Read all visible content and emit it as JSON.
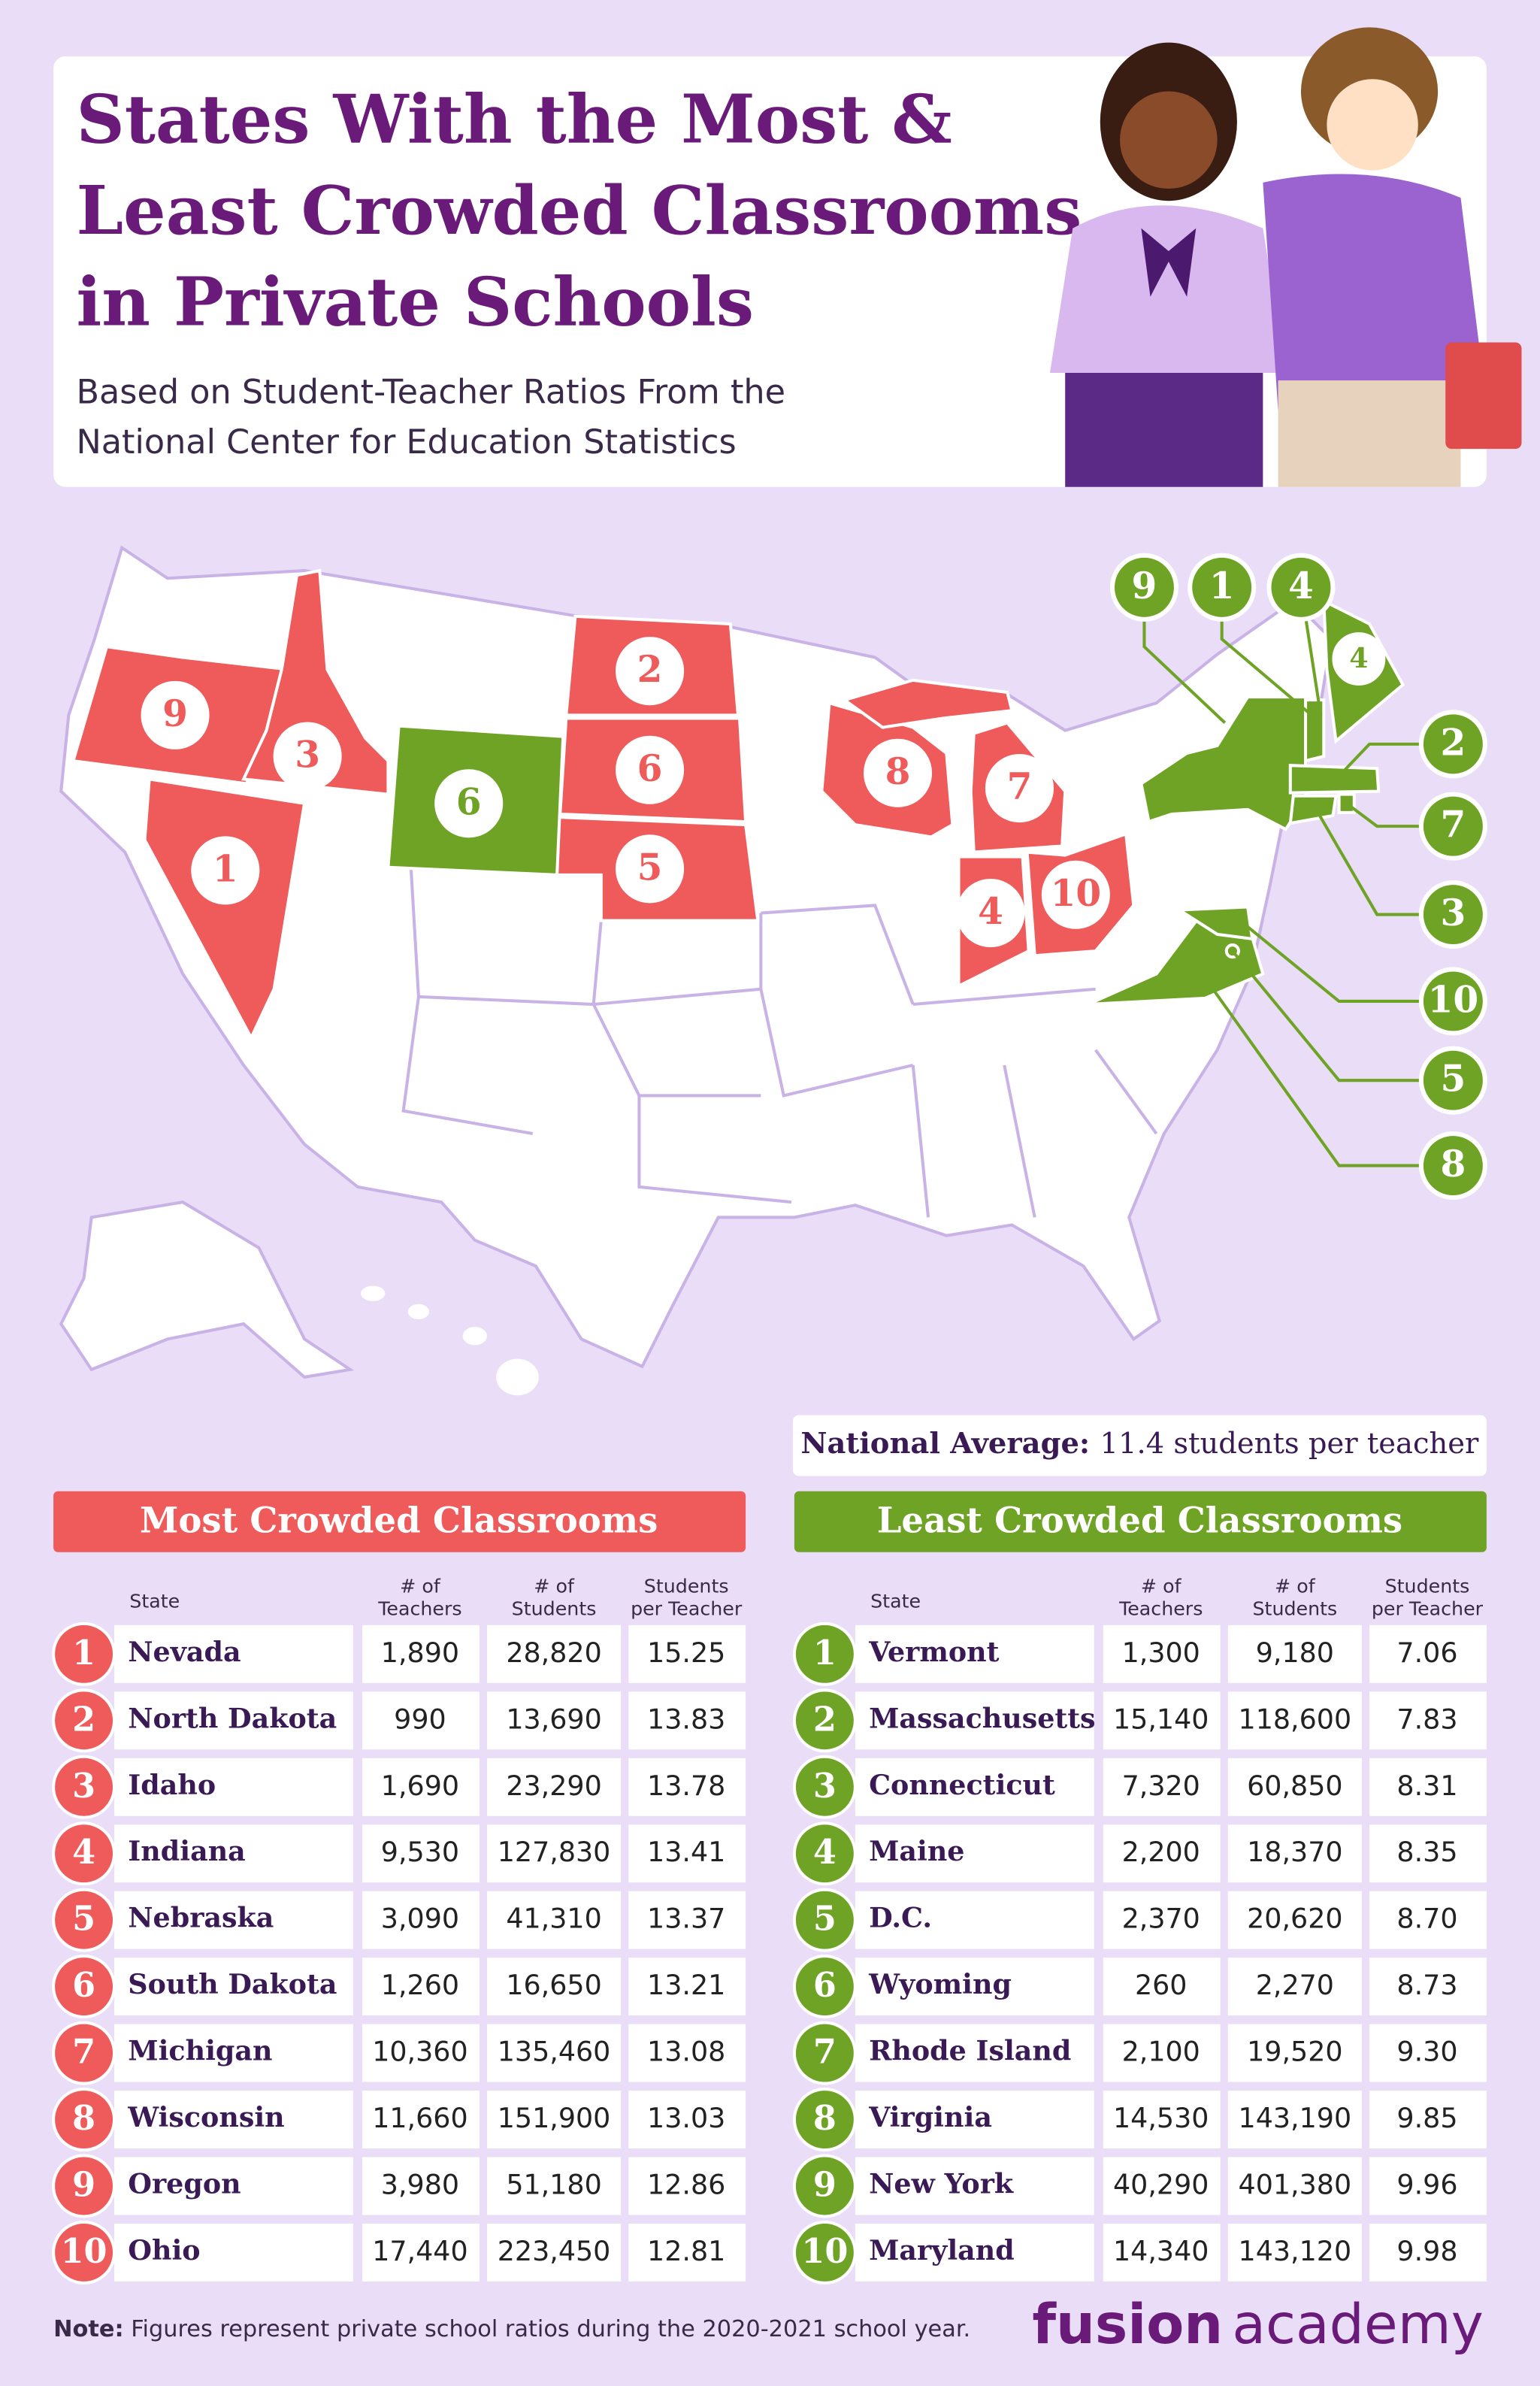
{
  "header": {
    "title_lines": [
      "States With the Most &",
      "Least Crowded Classrooms",
      "in Private Schools"
    ],
    "subtitle_lines": [
      "Based on Student-Teacher Ratios From the",
      "National Center for Education Statistics"
    ]
  },
  "national_average": {
    "label": "National Average:",
    "text": "11.4 students per teacher"
  },
  "most_crowded": {
    "title": "Most Crowded Classrooms",
    "columns": [
      [
        "State"
      ],
      [
        "# of",
        "Teachers"
      ],
      [
        "# of",
        "Students"
      ],
      [
        "Students",
        "per Teacher"
      ]
    ],
    "rows": [
      {
        "rank": 1,
        "state": "Nevada",
        "teachers": "1,890",
        "students": "28,820",
        "ratio": "15.25"
      },
      {
        "rank": 2,
        "state": "North Dakota",
        "teachers": "990",
        "students": "13,690",
        "ratio": "13.83"
      },
      {
        "rank": 3,
        "state": "Idaho",
        "teachers": "1,690",
        "students": "23,290",
        "ratio": "13.78"
      },
      {
        "rank": 4,
        "state": "Indiana",
        "teachers": "9,530",
        "students": "127,830",
        "ratio": "13.41"
      },
      {
        "rank": 5,
        "state": "Nebraska",
        "teachers": "3,090",
        "students": "41,310",
        "ratio": "13.37"
      },
      {
        "rank": 6,
        "state": "South Dakota",
        "teachers": "1,260",
        "students": "16,650",
        "ratio": "13.21"
      },
      {
        "rank": 7,
        "state": "Michigan",
        "teachers": "10,360",
        "students": "135,460",
        "ratio": "13.08"
      },
      {
        "rank": 8,
        "state": "Wisconsin",
        "teachers": "11,660",
        "students": "151,900",
        "ratio": "13.03"
      },
      {
        "rank": 9,
        "state": "Oregon",
        "teachers": "3,980",
        "students": "51,180",
        "ratio": "12.86"
      },
      {
        "rank": 10,
        "state": "Ohio",
        "teachers": "17,440",
        "students": "223,450",
        "ratio": "12.81"
      }
    ]
  },
  "least_crowded": {
    "title": "Least Crowded Classrooms",
    "columns": [
      [
        "State"
      ],
      [
        "# of",
        "Teachers"
      ],
      [
        "# of",
        "Students"
      ],
      [
        "Students",
        "per Teacher"
      ]
    ],
    "rows": [
      {
        "rank": 1,
        "state": "Vermont",
        "teachers": "1,300",
        "students": "9,180",
        "ratio": "7.06"
      },
      {
        "rank": 2,
        "state": "Massachusetts",
        "teachers": "15,140",
        "students": "118,600",
        "ratio": "7.83"
      },
      {
        "rank": 3,
        "state": "Connecticut",
        "teachers": "7,320",
        "students": "60,850",
        "ratio": "8.31"
      },
      {
        "rank": 4,
        "state": "Maine",
        "teachers": "2,200",
        "students": "18,370",
        "ratio": "8.35"
      },
      {
        "rank": 5,
        "state": "D.C.",
        "teachers": "2,370",
        "students": "20,620",
        "ratio": "8.70"
      },
      {
        "rank": 6,
        "state": "Wyoming",
        "teachers": "260",
        "students": "2,270",
        "ratio": "8.73"
      },
      {
        "rank": 7,
        "state": "Rhode Island",
        "teachers": "2,100",
        "students": "19,520",
        "ratio": "9.30"
      },
      {
        "rank": 8,
        "state": "Virginia",
        "teachers": "14,530",
        "students": "143,190",
        "ratio": "9.85"
      },
      {
        "rank": 9,
        "state": "New York",
        "teachers": "40,290",
        "students": "401,380",
        "ratio": "9.96"
      },
      {
        "rank": 10,
        "state": "Maryland",
        "teachers": "14,340",
        "students": "143,120",
        "ratio": "9.98"
      }
    ]
  },
  "note": {
    "label": "Note:",
    "text": "Figures represent private school ratios during the 2020-2021 school year."
  },
  "brand": {
    "first": "fusion",
    "second": "academy"
  }
}
